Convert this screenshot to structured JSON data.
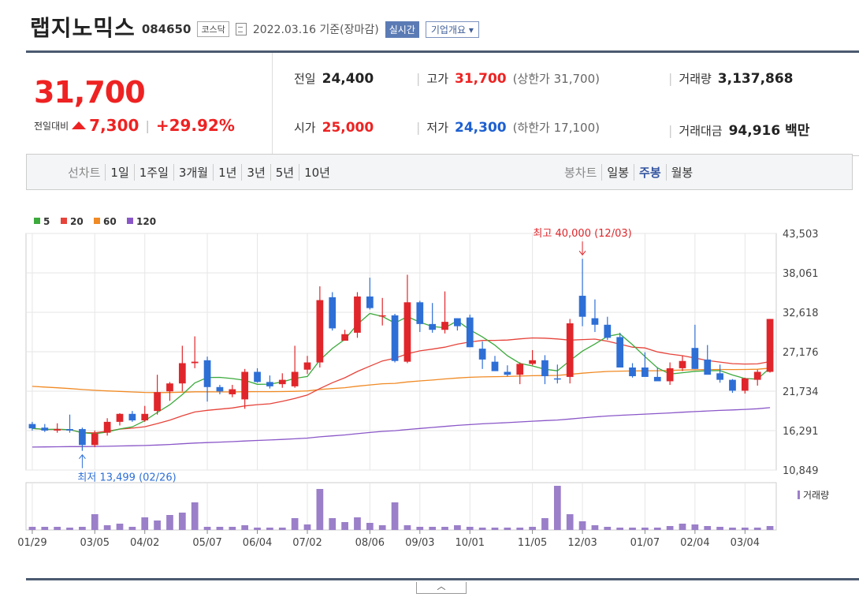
{
  "header": {
    "name": "랩지노믹스",
    "code": "084650",
    "market": "코스닥",
    "date": "2022.03.16 기준(장마감)",
    "realtime": "실시간",
    "corp_overview": "기업개요 ▾"
  },
  "quote": {
    "price": "31,700",
    "change_label": "전일대비",
    "change": "7,300",
    "change_pct": "+29.92%",
    "prev_label": "전일",
    "prev": "24,400",
    "high_label": "고가",
    "high": "31,700",
    "upper_limit": "(상한가 31,700)",
    "volume_label": "거래량",
    "volume": "3,137,868",
    "open_label": "시가",
    "open": "25,000",
    "low_label": "저가",
    "low": "24,300",
    "lower_limit": "(하한가 17,100)",
    "amount_label": "거래대금",
    "amount": "94,916 백만"
  },
  "tabs": {
    "line_label": "선차트",
    "line_items": [
      "1일",
      "1주일",
      "3개월",
      "1년",
      "3년",
      "5년",
      "10년"
    ],
    "candle_label": "봉차트",
    "candle_items": [
      "일봉",
      "주봉",
      "월봉"
    ],
    "candle_selected": "주봉"
  },
  "collapse": "︿",
  "chart_data": {
    "type": "candlestick",
    "legend": [
      {
        "name": "5",
        "color": "#3caa3c"
      },
      {
        "name": "20",
        "color": "#e6433a"
      },
      {
        "name": "60",
        "color": "#f08a24"
      },
      {
        "name": "120",
        "color": "#8a57c8"
      }
    ],
    "colors": {
      "up": "#e0262b",
      "down": "#2e6fd6",
      "volume": "#9b7fc9"
    },
    "y_ticks": [
      "43,503",
      "38,061",
      "32,618",
      "27,176",
      "21,734",
      "16,291",
      "10,849"
    ],
    "ylim": [
      10849,
      43503
    ],
    "x_ticks": [
      "01/29",
      "03/05",
      "04/02",
      "05/07",
      "06/04",
      "07/02",
      "08/06",
      "09/03",
      "10/01",
      "11/05",
      "12/03",
      "01/07",
      "02/04",
      "03/04"
    ],
    "x_tick_index": [
      0,
      5,
      9,
      14,
      18,
      22,
      27,
      31,
      35,
      40,
      44,
      49,
      53,
      57
    ],
    "annotations": {
      "high": {
        "text": "최고 40,000 (12/03)",
        "index": 44,
        "value": 40000
      },
      "low": {
        "text": "최저 13,499 (02/26)",
        "index": 4,
        "value": 13499
      }
    },
    "volume_label": "거래량",
    "candles": [
      [
        17200,
        17500,
        16300,
        16600
      ],
      [
        16700,
        17200,
        16100,
        16300
      ],
      [
        16300,
        17300,
        16000,
        16500
      ],
      [
        16500,
        18500,
        16000,
        16300
      ],
      [
        16500,
        16700,
        13499,
        14300
      ],
      [
        14300,
        16300,
        14000,
        15900
      ],
      [
        16000,
        18000,
        15600,
        17500
      ],
      [
        17500,
        18700,
        17000,
        18600
      ],
      [
        18600,
        19000,
        17500,
        17700
      ],
      [
        17700,
        19700,
        17500,
        18600
      ],
      [
        19000,
        24000,
        18500,
        21600
      ],
      [
        21700,
        23000,
        20400,
        22800
      ],
      [
        22800,
        28000,
        21700,
        25600
      ],
      [
        25600,
        29300,
        24900,
        25800
      ],
      [
        26000,
        26500,
        20300,
        22300
      ],
      [
        22300,
        22600,
        21300,
        21700
      ],
      [
        21300,
        22600,
        20900,
        22000
      ],
      [
        20600,
        24800,
        19300,
        24400
      ],
      [
        24400,
        24900,
        22900,
        23000
      ],
      [
        23000,
        23900,
        22100,
        22400
      ],
      [
        22700,
        24200,
        22200,
        23300
      ],
      [
        22400,
        28000,
        22200,
        24400
      ],
      [
        24700,
        26600,
        24100,
        25700
      ],
      [
        25700,
        36200,
        25000,
        34300
      ],
      [
        34700,
        35400,
        30100,
        30400
      ],
      [
        28700,
        30200,
        28700,
        29600
      ],
      [
        29800,
        35400,
        29100,
        34800
      ],
      [
        34800,
        37400,
        33000,
        33200
      ],
      [
        32100,
        34600,
        30800,
        32200
      ],
      [
        32200,
        32400,
        25700,
        25900
      ],
      [
        25800,
        37800,
        25600,
        34000
      ],
      [
        34000,
        34200,
        29900,
        31000
      ],
      [
        31000,
        33900,
        29800,
        30200
      ],
      [
        30200,
        35500,
        29700,
        31300
      ],
      [
        31800,
        31800,
        30100,
        30700
      ],
      [
        31900,
        32300,
        27800,
        27800
      ],
      [
        27600,
        28600,
        24800,
        26100
      ],
      [
        25800,
        26600,
        24600,
        24500
      ],
      [
        24400,
        25300,
        23800,
        24000
      ],
      [
        24000,
        25700,
        22700,
        25500
      ],
      [
        25500,
        27400,
        25300,
        26000
      ],
      [
        26000,
        26700,
        22700,
        23800
      ],
      [
        23500,
        25400,
        22800,
        23400
      ],
      [
        23700,
        31700,
        22800,
        31100
      ],
      [
        34900,
        40000,
        30700,
        32000
      ],
      [
        31800,
        34400,
        29900,
        30900
      ],
      [
        30900,
        32000,
        28800,
        29100
      ],
      [
        29200,
        29800,
        25200,
        25000
      ],
      [
        25000,
        25600,
        23600,
        23800
      ],
      [
        25000,
        27100,
        24000,
        23700
      ],
      [
        23700,
        25000,
        23200,
        23100
      ],
      [
        23100,
        25700,
        22600,
        24900
      ],
      [
        24900,
        26600,
        24500,
        25900
      ],
      [
        27700,
        30900,
        24800,
        24800
      ],
      [
        26100,
        28100,
        24200,
        24000
      ],
      [
        24200,
        25400,
        22900,
        23300
      ],
      [
        23300,
        23400,
        21500,
        21800
      ],
      [
        21800,
        23600,
        21400,
        23500
      ],
      [
        23300,
        24700,
        22500,
        24400
      ],
      [
        24400,
        31700,
        24300,
        31700
      ]
    ],
    "volumes": [
      4,
      4,
      4,
      3,
      4,
      20,
      6,
      8,
      4,
      16,
      12,
      19,
      22,
      35,
      4,
      4,
      4,
      6,
      3,
      3,
      3,
      15,
      7,
      52,
      15,
      10,
      16,
      9,
      6,
      35,
      6,
      4,
      4,
      4,
      6,
      4,
      3,
      3,
      3,
      3,
      4,
      15,
      56,
      20,
      11,
      6,
      4,
      3,
      3,
      3,
      3,
      5,
      8,
      7,
      5,
      4,
      3,
      3,
      3,
      5
    ]
  }
}
